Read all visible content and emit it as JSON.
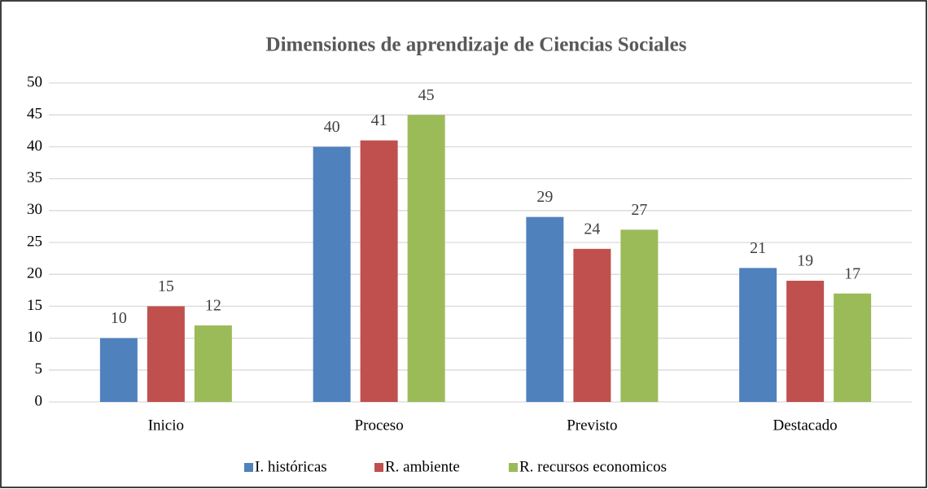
{
  "chart_data": {
    "type": "bar",
    "title": "Dimensiones de aprendizaje de Ciencias Sociales",
    "categories": [
      "Inicio",
      "Proceso",
      "Previsto",
      "Destacado"
    ],
    "series": [
      {
        "name": "I. históricas",
        "color": "#4f81bd",
        "values": [
          10,
          40,
          29,
          21
        ]
      },
      {
        "name": "R. ambiente",
        "color": "#c0504d",
        "values": [
          15,
          41,
          24,
          19
        ]
      },
      {
        "name": "R. recursos economicos",
        "color": "#9bbb59",
        "values": [
          12,
          45,
          27,
          17
        ]
      }
    ],
    "ylim": [
      0,
      50
    ],
    "yticks": [
      0,
      5,
      10,
      15,
      20,
      25,
      30,
      35,
      40,
      45,
      50
    ],
    "grid": true,
    "legend": "bottom"
  }
}
